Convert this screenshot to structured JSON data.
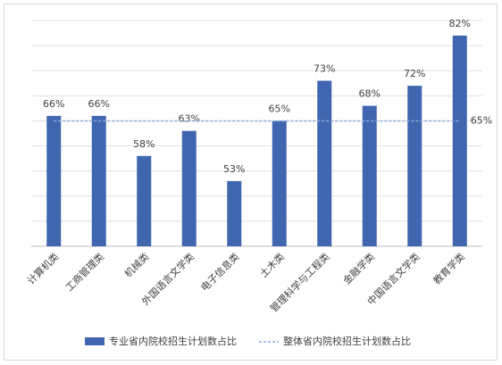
{
  "chart_data": {
    "type": "bar",
    "categories": [
      "计算机类",
      "工商管理类",
      "机械类",
      "外国语言文学类",
      "电子信息类",
      "土木类",
      "管理科学与工程类",
      "金融学类",
      "中国语言文学类",
      "教育学类"
    ],
    "series": [
      {
        "name": "专业省内院校招生计划数占比",
        "type": "bar",
        "color": "#4066b0",
        "values": [
          66,
          66,
          58,
          63,
          53,
          65,
          73,
          68,
          72,
          82
        ],
        "value_labels": [
          "66%",
          "66%",
          "58%",
          "63%",
          "53%",
          "65%",
          "73%",
          "68%",
          "72%",
          "82%"
        ]
      },
      {
        "name": "整体省内院校招生计划数占比",
        "type": "line",
        "dashed": true,
        "color": "#8eaadb",
        "values": [
          65,
          65,
          65,
          65,
          65,
          65,
          65,
          65,
          65,
          65
        ],
        "value_labels": [
          null,
          null,
          null,
          null,
          null,
          null,
          null,
          null,
          null,
          "65%"
        ]
      }
    ],
    "ylim": [
      40,
      85
    ],
    "yticks": [
      40,
      45,
      50,
      55,
      60,
      65,
      70,
      75,
      80,
      85
    ],
    "grid": true
  }
}
